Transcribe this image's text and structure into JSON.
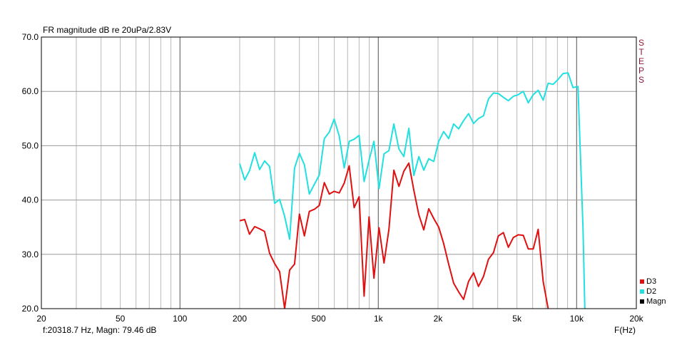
{
  "chart_data": {
    "type": "line",
    "title": "FR magnitude dB re 20uPa/2.83V",
    "xlabel": "F(Hz)",
    "x_scale": "log",
    "xlim": [
      20,
      20000
    ],
    "ylim": [
      20,
      70
    ],
    "x_ticks": [
      20,
      50,
      100,
      200,
      500,
      1000,
      2000,
      5000,
      10000,
      20000
    ],
    "x_tick_labels": [
      "20",
      "50",
      "100",
      "200",
      "500",
      "1k",
      "2k",
      "5k",
      "10k",
      "20k"
    ],
    "y_ticks": [
      20,
      30,
      40,
      50,
      60,
      70
    ],
    "y_tick_labels": [
      "20.0",
      "30.0",
      "40.0",
      "50.0",
      "60.0",
      "70.0"
    ],
    "grid": true,
    "right_label": "STEPS",
    "status_text": "f:20318.7 Hz, Magn: 79.46 dB",
    "legend_position": "bottom-right",
    "legend": [
      {
        "name": "D3",
        "color": "#e01010"
      },
      {
        "name": "D2",
        "color": "#22e0e0"
      },
      {
        "name": "Magn",
        "color": "#000000"
      }
    ],
    "series": [
      {
        "name": "D2",
        "color": "#22e0e0",
        "x": [
          200,
          212,
          224,
          238,
          252,
          267,
          283,
          300,
          318,
          337,
          357,
          378,
          400,
          424,
          449,
          476,
          504,
          534,
          566,
          599,
          635,
          673,
          713,
          755,
          800,
          848,
          898,
          951,
          1008,
          1068,
          1131,
          1198,
          1270,
          1345,
          1425,
          1510,
          1600,
          1695,
          1796,
          1903,
          2016,
          2136,
          2263,
          2397,
          2540,
          2691,
          2851,
          3020,
          3200,
          3390,
          3592,
          3805,
          4032,
          4271,
          4525,
          4795,
          5080,
          5382,
          5702,
          6041,
          6400,
          6781,
          7184,
          7611,
          8063,
          8543,
          9051,
          9589,
          10159,
          10763,
          11000
        ],
        "values": [
          46.7,
          43.7,
          45.4,
          48.7,
          45.6,
          47.2,
          46.2,
          39.4,
          40.1,
          37.0,
          32.8,
          45.9,
          48.6,
          46.5,
          41.1,
          42.9,
          44.6,
          51.3,
          52.5,
          54.9,
          51.8,
          45.9,
          50.8,
          51.2,
          51.9,
          43.4,
          47.3,
          50.8,
          42.1,
          48.5,
          49.1,
          54.0,
          49.4,
          48.0,
          53.2,
          44.5,
          48.0,
          45.5,
          47.6,
          47.1,
          50.8,
          52.6,
          51.3,
          54.0,
          53.1,
          54.6,
          55.9,
          54.1,
          55.0,
          55.5,
          58.6,
          59.7,
          59.6,
          58.9,
          58.3,
          59.1,
          59.4,
          60.0,
          57.9,
          59.4,
          60.2,
          58.4,
          61.5,
          61.3,
          62.2,
          63.3,
          63.4,
          60.7,
          60.9,
          35.0,
          20.0
        ]
      },
      {
        "name": "D3",
        "color": "#e01010",
        "x": [
          200,
          212,
          224,
          238,
          252,
          267,
          283,
          300,
          318,
          337,
          357,
          378,
          400,
          424,
          449,
          476,
          504,
          534,
          566,
          599,
          635,
          673,
          713,
          755,
          800,
          848,
          898,
          951,
          1008,
          1068,
          1131,
          1198,
          1270,
          1345,
          1425,
          1510,
          1600,
          1695,
          1796,
          1903,
          2016,
          2136,
          2263,
          2397,
          2540,
          2691,
          2851,
          3020,
          3200,
          3390,
          3592,
          3805,
          4032,
          4271,
          4525,
          4795,
          5080,
          5382,
          5702,
          6041,
          6400,
          6781,
          7184,
          7611
        ],
        "values": [
          36.2,
          36.4,
          33.7,
          35.1,
          34.7,
          34.2,
          30.2,
          28.3,
          26.8,
          20.0,
          27.1,
          28.2,
          37.4,
          33.4,
          37.9,
          38.3,
          39.0,
          43.2,
          41.1,
          41.6,
          41.3,
          43.1,
          46.3,
          38.6,
          40.6,
          22.3,
          36.9,
          25.6,
          34.9,
          28.4,
          34.6,
          45.5,
          42.5,
          45.3,
          46.8,
          41.8,
          37.3,
          34.5,
          38.4,
          36.6,
          35.0,
          32.0,
          28.2,
          24.7,
          23.1,
          21.7,
          25.0,
          26.6,
          24.1,
          25.9,
          29.1,
          30.3,
          33.4,
          34.0,
          31.3,
          33.1,
          33.6,
          33.5,
          31.0,
          31.0,
          34.6,
          25.0,
          20.0,
          17.0
        ]
      }
    ]
  }
}
